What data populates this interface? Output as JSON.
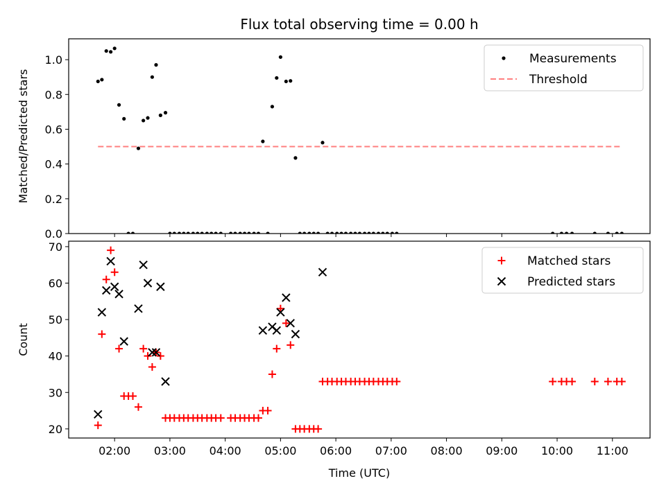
{
  "chart_data": [
    {
      "type": "scatter",
      "title": "Flux total observing time = 0.00 h",
      "xlabel": "",
      "ylabel": "Matched/Predicted stars",
      "xlim": [
        1.17,
        11.68
      ],
      "ylim": [
        0.0,
        1.12
      ],
      "yticks": [
        0.0,
        0.2,
        0.4,
        0.6,
        0.8,
        1.0
      ],
      "legend": "top-right",
      "series": [
        {
          "name": "Measurements",
          "marker": "dot",
          "color": "#000000",
          "points": [
            [
              1.7,
              0.875
            ],
            [
              1.77,
              0.885
            ],
            [
              1.85,
              1.05
            ],
            [
              1.93,
              1.045
            ],
            [
              2.0,
              1.065
            ],
            [
              2.08,
              0.74
            ],
            [
              2.17,
              0.66
            ],
            [
              2.25,
              0.0
            ],
            [
              2.33,
              0.0
            ],
            [
              2.43,
              0.49
            ],
            [
              2.52,
              0.65
            ],
            [
              2.6,
              0.665
            ],
            [
              2.68,
              0.9
            ],
            [
              2.75,
              0.97
            ],
            [
              2.83,
              0.68
            ],
            [
              2.92,
              0.695
            ],
            [
              3.0,
              0.0
            ],
            [
              3.08,
              0.0
            ],
            [
              3.17,
              0.0
            ],
            [
              3.25,
              0.0
            ],
            [
              3.33,
              0.0
            ],
            [
              3.42,
              0.0
            ],
            [
              3.5,
              0.0
            ],
            [
              3.58,
              0.0
            ],
            [
              3.67,
              0.0
            ],
            [
              3.75,
              0.0
            ],
            [
              3.83,
              0.0
            ],
            [
              3.92,
              0.0
            ],
            [
              4.1,
              0.0
            ],
            [
              4.18,
              0.0
            ],
            [
              4.27,
              0.0
            ],
            [
              4.35,
              0.0
            ],
            [
              4.43,
              0.0
            ],
            [
              4.52,
              0.0
            ],
            [
              4.6,
              0.0
            ],
            [
              4.68,
              0.53
            ],
            [
              4.77,
              0.0
            ],
            [
              4.85,
              0.73
            ],
            [
              4.93,
              0.895
            ],
            [
              5.0,
              1.015
            ],
            [
              5.1,
              0.875
            ],
            [
              5.18,
              0.878
            ],
            [
              5.27,
              0.435
            ],
            [
              5.35,
              0.0
            ],
            [
              5.43,
              0.0
            ],
            [
              5.52,
              0.0
            ],
            [
              5.6,
              0.0
            ],
            [
              5.68,
              0.0
            ],
            [
              5.76,
              0.523
            ],
            [
              5.85,
              0.0
            ],
            [
              5.93,
              0.0
            ],
            [
              6.02,
              0.0
            ],
            [
              6.1,
              0.0
            ],
            [
              6.18,
              0.0
            ],
            [
              6.27,
              0.0
            ],
            [
              6.35,
              0.0
            ],
            [
              6.43,
              0.0
            ],
            [
              6.52,
              0.0
            ],
            [
              6.6,
              0.0
            ],
            [
              6.68,
              0.0
            ],
            [
              6.77,
              0.0
            ],
            [
              6.85,
              0.0
            ],
            [
              6.93,
              0.0
            ],
            [
              7.02,
              0.0
            ],
            [
              7.1,
              0.0
            ],
            [
              9.92,
              0.0
            ],
            [
              10.08,
              0.0
            ],
            [
              10.17,
              0.0
            ],
            [
              10.27,
              0.0
            ],
            [
              10.68,
              0.0
            ],
            [
              10.92,
              0.0
            ],
            [
              11.08,
              0.0
            ],
            [
              11.17,
              0.0
            ]
          ]
        },
        {
          "name": "Threshold",
          "type": "line",
          "dash": "dashed",
          "color": "#ff7f7f",
          "points": [
            [
              1.7,
              0.5
            ],
            [
              11.17,
              0.5
            ]
          ]
        }
      ]
    },
    {
      "type": "scatter",
      "title": "",
      "xlabel": "Time (UTC)",
      "ylabel": "Count",
      "xlim": [
        1.17,
        11.68
      ],
      "ylim": [
        17.5,
        71.5
      ],
      "yticks": [
        20,
        30,
        40,
        50,
        60,
        70
      ],
      "xticks": [
        2,
        3,
        4,
        5,
        6,
        7,
        8,
        9,
        10,
        11
      ],
      "xtick_labels": [
        "02:00",
        "03:00",
        "04:00",
        "05:00",
        "06:00",
        "07:00",
        "08:00",
        "09:00",
        "10:00",
        "11:00"
      ],
      "legend": "top-right",
      "series": [
        {
          "name": "Matched stars",
          "marker": "plus",
          "color": "#ff0000",
          "points": [
            [
              1.7,
              21
            ],
            [
              1.77,
              46
            ],
            [
              1.85,
              61
            ],
            [
              1.93,
              69
            ],
            [
              2.0,
              63
            ],
            [
              2.08,
              42
            ],
            [
              2.17,
              29
            ],
            [
              2.25,
              29
            ],
            [
              2.33,
              29
            ],
            [
              2.43,
              26
            ],
            [
              2.52,
              42
            ],
            [
              2.6,
              40
            ],
            [
              2.68,
              37
            ],
            [
              2.75,
              41
            ],
            [
              2.83,
              40
            ],
            [
              2.92,
              23
            ],
            [
              3.0,
              23
            ],
            [
              3.08,
              23
            ],
            [
              3.17,
              23
            ],
            [
              3.25,
              23
            ],
            [
              3.33,
              23
            ],
            [
              3.42,
              23
            ],
            [
              3.5,
              23
            ],
            [
              3.58,
              23
            ],
            [
              3.67,
              23
            ],
            [
              3.75,
              23
            ],
            [
              3.83,
              23
            ],
            [
              3.92,
              23
            ],
            [
              4.1,
              23
            ],
            [
              4.18,
              23
            ],
            [
              4.27,
              23
            ],
            [
              4.35,
              23
            ],
            [
              4.43,
              23
            ],
            [
              4.52,
              23
            ],
            [
              4.6,
              23
            ],
            [
              4.68,
              25
            ],
            [
              4.77,
              25
            ],
            [
              4.85,
              35
            ],
            [
              4.93,
              42
            ],
            [
              5.0,
              53
            ],
            [
              5.1,
              49
            ],
            [
              5.18,
              43
            ],
            [
              5.27,
              20
            ],
            [
              5.35,
              20
            ],
            [
              5.43,
              20
            ],
            [
              5.52,
              20
            ],
            [
              5.6,
              20
            ],
            [
              5.68,
              20
            ],
            [
              5.76,
              33
            ],
            [
              5.85,
              33
            ],
            [
              5.93,
              33
            ],
            [
              6.02,
              33
            ],
            [
              6.1,
              33
            ],
            [
              6.18,
              33
            ],
            [
              6.27,
              33
            ],
            [
              6.35,
              33
            ],
            [
              6.43,
              33
            ],
            [
              6.52,
              33
            ],
            [
              6.6,
              33
            ],
            [
              6.68,
              33
            ],
            [
              6.77,
              33
            ],
            [
              6.85,
              33
            ],
            [
              6.93,
              33
            ],
            [
              7.02,
              33
            ],
            [
              7.1,
              33
            ],
            [
              9.92,
              33
            ],
            [
              10.08,
              33
            ],
            [
              10.17,
              33
            ],
            [
              10.27,
              33
            ],
            [
              10.68,
              33
            ],
            [
              10.92,
              33
            ],
            [
              11.08,
              33
            ],
            [
              11.17,
              33
            ]
          ]
        },
        {
          "name": "Predicted stars",
          "marker": "x",
          "color": "#000000",
          "points": [
            [
              1.7,
              24
            ],
            [
              1.77,
              52
            ],
            [
              1.85,
              58
            ],
            [
              1.93,
              66
            ],
            [
              2.0,
              59
            ],
            [
              2.08,
              57
            ],
            [
              2.17,
              44
            ],
            [
              2.43,
              53
            ],
            [
              2.52,
              65
            ],
            [
              2.6,
              60
            ],
            [
              2.68,
              41
            ],
            [
              2.75,
              41
            ],
            [
              2.83,
              59
            ],
            [
              2.92,
              33
            ],
            [
              4.68,
              47
            ],
            [
              4.85,
              48
            ],
            [
              4.93,
              47
            ],
            [
              5.0,
              52
            ],
            [
              5.1,
              56
            ],
            [
              5.18,
              49
            ],
            [
              5.27,
              46
            ],
            [
              5.76,
              63
            ]
          ]
        }
      ]
    }
  ]
}
